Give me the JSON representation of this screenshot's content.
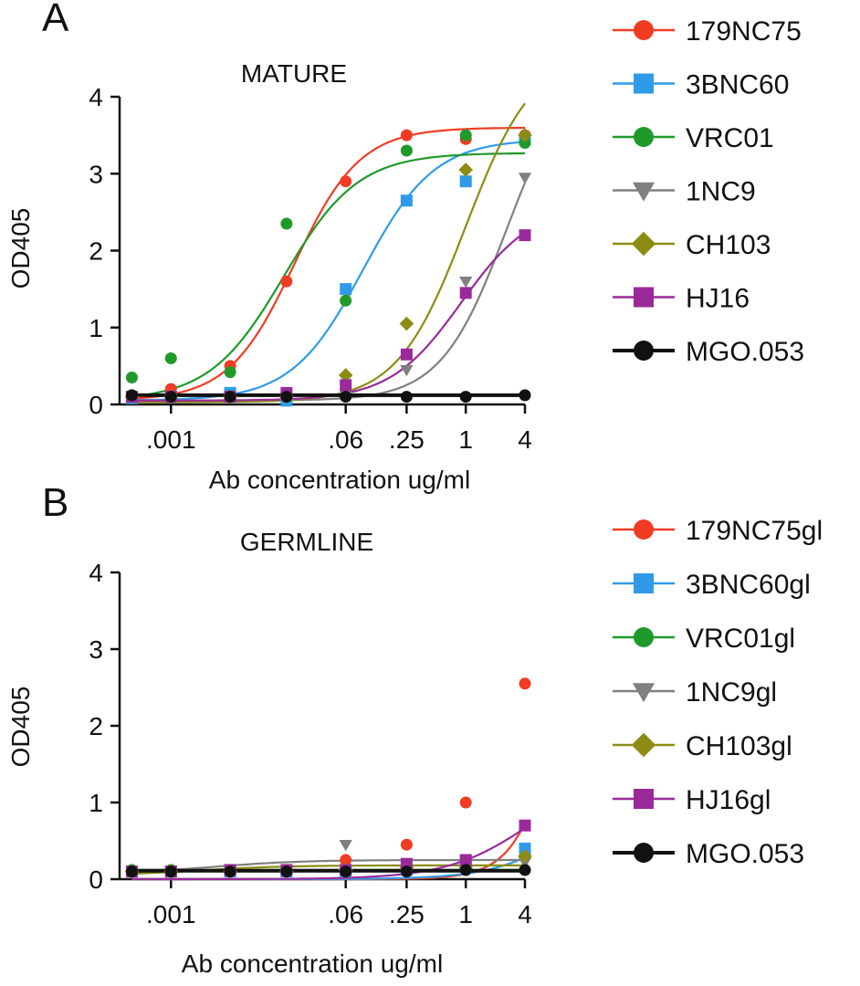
{
  "chart_data": [
    {
      "type": "line",
      "panel_label": "A",
      "title": "MATURE",
      "xlabel": "Ab concentration ug/ml",
      "ylabel": "OD405",
      "x_scale": "log",
      "xlim": [
        0.0003,
        4
      ],
      "ylim": [
        0,
        4
      ],
      "x_ticks": [
        0.001,
        0.06,
        0.25,
        1,
        4
      ],
      "x_tick_labels": [
        ".001",
        ".06",
        ".25",
        "1",
        "4"
      ],
      "y_ticks": [
        0,
        1,
        2,
        3,
        4
      ],
      "y_tick_labels": [
        "0",
        "1",
        "2",
        "3",
        "4"
      ],
      "x": [
        0.0004,
        0.001,
        0.004,
        0.015,
        0.06,
        0.25,
        1,
        4
      ],
      "legend_position": "right",
      "series": [
        {
          "name": "179NC75",
          "color": "#f03c23",
          "marker": "circle",
          "values": [
            0.1,
            0.2,
            0.5,
            1.6,
            2.9,
            3.5,
            3.45,
            3.5
          ],
          "fit": {
            "bottom": 0.05,
            "top": 3.6,
            "ec50": 0.018,
            "hill": 1.3
          }
        },
        {
          "name": "3BNC60",
          "color": "#2f9be8",
          "marker": "square",
          "values": [
            0.08,
            0.1,
            0.15,
            0.05,
            1.5,
            2.65,
            2.9,
            3.45
          ],
          "fit": {
            "bottom": 0.05,
            "top": 3.45,
            "ec50": 0.09,
            "hill": 1.2
          }
        },
        {
          "name": "VRC01",
          "color": "#1f9a2a",
          "marker": "circle",
          "values": [
            0.35,
            0.6,
            0.42,
            2.35,
            1.35,
            3.3,
            3.5,
            3.4
          ],
          "fit": {
            "bottom": 0.05,
            "top": 3.27,
            "ec50": 0.014,
            "hill": 1.15
          }
        },
        {
          "name": "1NC9",
          "color": "#808080",
          "marker": "triangle-down",
          "values": [
            0.1,
            0.1,
            0.1,
            0.1,
            0.12,
            0.45,
            1.6,
            2.95
          ],
          "fit": {
            "bottom": 0.05,
            "top": 4.5,
            "ec50": 2.6,
            "hill": 1.3
          }
        },
        {
          "name": "CH103",
          "color": "#8c8c14",
          "marker": "diamond",
          "values": [
            0.1,
            0.1,
            0.1,
            0.1,
            0.38,
            1.05,
            3.05,
            3.5
          ],
          "fit": {
            "bottom": 0.03,
            "top": 4.6,
            "ec50": 1.0,
            "hill": 1.25
          }
        },
        {
          "name": "HJ16",
          "color": "#9a2a9a",
          "marker": "square",
          "values": [
            0.1,
            0.1,
            0.1,
            0.15,
            0.25,
            0.65,
            1.45,
            2.2
          ],
          "fit": {
            "bottom": 0.05,
            "top": 2.6,
            "ec50": 0.9,
            "hill": 1.2
          }
        },
        {
          "name": "MGO.053",
          "color": "#111111",
          "marker": "circle",
          "values": [
            0.12,
            0.1,
            0.1,
            0.1,
            0.1,
            0.1,
            0.1,
            0.12
          ],
          "fit": {
            "bottom": 0.12,
            "top": 0.12,
            "ec50": 1,
            "hill": 1
          }
        }
      ]
    },
    {
      "type": "line",
      "panel_label": "B",
      "title": "GERMLINE",
      "xlabel": "Ab concentration ug/ml",
      "ylabel": "OD405",
      "x_scale": "log",
      "xlim": [
        0.0003,
        4
      ],
      "ylim": [
        0,
        4
      ],
      "x_ticks": [
        0.001,
        0.06,
        0.25,
        1,
        4
      ],
      "x_tick_labels": [
        ".001",
        ".06",
        ".25",
        "1",
        "4"
      ],
      "y_ticks": [
        0,
        1,
        2,
        3,
        4
      ],
      "y_tick_labels": [
        "0",
        "1",
        "2",
        "3",
        "4"
      ],
      "x": [
        0.0004,
        0.001,
        0.004,
        0.015,
        0.06,
        0.25,
        1,
        4
      ],
      "legend_position": "right",
      "series": [
        {
          "name": "179NC75gl",
          "color": "#f03c23",
          "marker": "circle",
          "values": [
            0.1,
            0.1,
            0.1,
            0.1,
            0.25,
            0.45,
            1.0,
            2.55
          ],
          "fit": {
            "bottom": 0.0,
            "top": 10,
            "ec50": 17,
            "hill": 1.75
          }
        },
        {
          "name": "3BNC60gl",
          "color": "#2f9be8",
          "marker": "square",
          "values": [
            0.1,
            0.1,
            0.1,
            0.1,
            0.1,
            0.12,
            0.2,
            0.4
          ],
          "fit": {
            "bottom": 0.0,
            "top": 1.5,
            "ec50": 15,
            "hill": 1.1
          }
        },
        {
          "name": "VRC01gl",
          "color": "#1f9a2a",
          "marker": "circle",
          "values": [
            0.12,
            0.12,
            0.12,
            0.12,
            0.12,
            0.12,
            0.12,
            0.12
          ],
          "fit": {
            "bottom": 0.12,
            "top": 0.12,
            "ec50": 1,
            "hill": 1
          }
        },
        {
          "name": "1NC9gl",
          "color": "#808080",
          "marker": "triangle-down",
          "values": [
            0.1,
            0.1,
            0.1,
            0.1,
            0.45,
            0.2,
            0.2,
            0.22
          ],
          "fit": {
            "bottom": 0.08,
            "top": 0.25,
            "ec50": 0.003,
            "hill": 1
          }
        },
        {
          "name": "CH103gl",
          "color": "#8c8c14",
          "marker": "diamond",
          "values": [
            0.1,
            0.1,
            0.1,
            0.1,
            0.12,
            0.15,
            0.15,
            0.3
          ],
          "fit": {
            "bottom": 0.05,
            "top": 0.18,
            "ec50": 0.002,
            "hill": 1
          }
        },
        {
          "name": "HJ16gl",
          "color": "#9a2a9a",
          "marker": "square",
          "values": [
            0.1,
            0.1,
            0.12,
            0.12,
            0.12,
            0.2,
            0.25,
            0.7
          ],
          "fit": {
            "bottom": 0.0,
            "top": 1.5,
            "ec50": 5,
            "hill": 1.0
          }
        },
        {
          "name": "MGO.053",
          "color": "#111111",
          "marker": "circle",
          "values": [
            0.1,
            0.1,
            0.1,
            0.1,
            0.1,
            0.1,
            0.12,
            0.12
          ],
          "fit": {
            "bottom": 0.11,
            "top": 0.11,
            "ec50": 1,
            "hill": 1
          }
        }
      ]
    }
  ]
}
